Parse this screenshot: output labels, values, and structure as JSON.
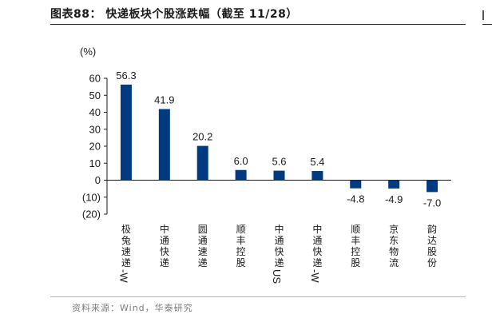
{
  "header": {
    "title": "图表88： 快递板块个股涨跌幅（截至 11/28）"
  },
  "footer": {
    "source": "资料来源：Wind，华泰研究"
  },
  "chart_data": {
    "type": "bar",
    "title": "快递板块个股涨跌幅（截至 11/28）",
    "ylabel": "(%)",
    "xlabel": "",
    "ylim": [
      -20,
      60
    ],
    "yticks": [
      60,
      50,
      40,
      30,
      20,
      10,
      0,
      -10,
      -20
    ],
    "ytick_labels": [
      "60",
      "50",
      "40",
      "30",
      "20",
      "10",
      "0",
      "(10)",
      "(20)"
    ],
    "categories": [
      "极兔速递-W",
      "中通快递",
      "圆通速递",
      "顺丰控股",
      "中通快递US",
      "中通快递-W",
      "顺丰控股",
      "京东物流",
      "韵达股份"
    ],
    "values": [
      56.3,
      41.9,
      20.2,
      6.0,
      5.6,
      5.4,
      -4.8,
      -4.9,
      -7.0
    ],
    "value_labels": [
      "56.3",
      "41.9",
      "20.2",
      "6.0",
      "5.6",
      "5.4",
      "-4.8",
      "-4.9",
      "-7.0"
    ],
    "bar_color": "#003a80",
    "grid": false,
    "legend": "none"
  }
}
